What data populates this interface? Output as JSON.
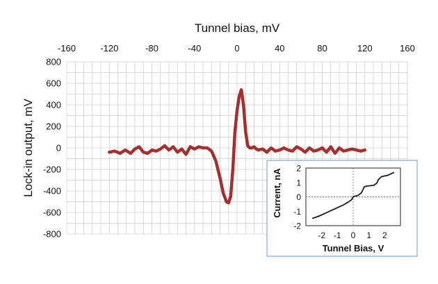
{
  "chart_data": [
    {
      "type": "line",
      "title": "",
      "xlabel": "Tunnel bias, mV",
      "ylabel": "Lock-in output, mV",
      "xlim": [
        -160,
        160
      ],
      "ylim": [
        -800,
        800
      ],
      "x_ticks": [
        -160,
        -120,
        -80,
        -40,
        0,
        40,
        80,
        120,
        160
      ],
      "y_ticks": [
        800,
        600,
        400,
        200,
        0,
        -200,
        -400,
        -600,
        -800
      ],
      "x_tick_labels": [
        "-160",
        "-120",
        "-80",
        "-40",
        "0",
        "40",
        "80",
        "120",
        "160"
      ],
      "y_tick_labels": [
        "800",
        "600",
        "400",
        "200",
        "0",
        "-200",
        "-400",
        "-600",
        "-800"
      ],
      "grid": true,
      "line_color": "#a53030",
      "series": [
        {
          "x": [
            -120,
            -115,
            -110,
            -105,
            -100,
            -96,
            -92,
            -88,
            -84,
            -80,
            -76,
            -72,
            -68,
            -64,
            -60,
            -56,
            -52,
            -48,
            -44,
            -40,
            -36,
            -32,
            -28,
            -24,
            -20,
            -16,
            -13,
            -10,
            -8,
            -6,
            -4,
            -2,
            0,
            2,
            4,
            6,
            8,
            10,
            12,
            14,
            16,
            18,
            20,
            24,
            28,
            32,
            36,
            40,
            44,
            48,
            52,
            56,
            60,
            64,
            68,
            72,
            76,
            80,
            84,
            88,
            92,
            96,
            100,
            104,
            108,
            112,
            116,
            120
          ],
          "y": [
            -40,
            -30,
            -50,
            -20,
            -50,
            -10,
            10,
            -40,
            -50,
            -20,
            -30,
            -10,
            20,
            -20,
            10,
            -40,
            -10,
            -60,
            10,
            -10,
            10,
            0,
            0,
            -30,
            -120,
            -280,
            -420,
            -500,
            -510,
            -450,
            -200,
            150,
            350,
            480,
            540,
            400,
            150,
            20,
            0,
            0,
            10,
            -10,
            -20,
            -10,
            -40,
            0,
            -30,
            -20,
            0,
            -20,
            -30,
            10,
            -10,
            -40,
            0,
            -30,
            -20,
            0,
            -40,
            10,
            -50,
            0,
            -30,
            -20,
            -10,
            -20,
            -30,
            -20
          ]
        }
      ]
    },
    {
      "type": "line",
      "title": "",
      "xlabel": "Tunnel Bias, V",
      "ylabel": "Current, nA",
      "xlim": [
        -3,
        3
      ],
      "ylim": [
        -2,
        2
      ],
      "x_ticks": [
        -2,
        -1,
        0,
        1,
        2
      ],
      "y_ticks": [
        2,
        1,
        0,
        -1,
        -2
      ],
      "x_tick_labels": [
        "-2",
        "-1",
        "0",
        "1",
        "2"
      ],
      "y_tick_labels": [
        "2",
        "1",
        "0",
        "-1",
        "-2"
      ],
      "line_color": "#1a1a1a",
      "series": [
        {
          "x": [
            -2.6,
            -2.2,
            -1.8,
            -1.4,
            -1.0,
            -0.6,
            -0.3,
            -0.1,
            0.0,
            0.1,
            0.3,
            0.5,
            0.6,
            0.7,
            0.9,
            1.3,
            1.5,
            1.6,
            1.8,
            2.2,
            2.6
          ],
          "y": [
            -1.5,
            -1.35,
            -1.15,
            -0.95,
            -0.75,
            -0.55,
            -0.35,
            -0.2,
            0.0,
            0.05,
            0.1,
            0.25,
            0.45,
            0.7,
            0.75,
            0.8,
            0.95,
            1.2,
            1.4,
            1.5,
            1.7
          ]
        }
      ]
    }
  ]
}
